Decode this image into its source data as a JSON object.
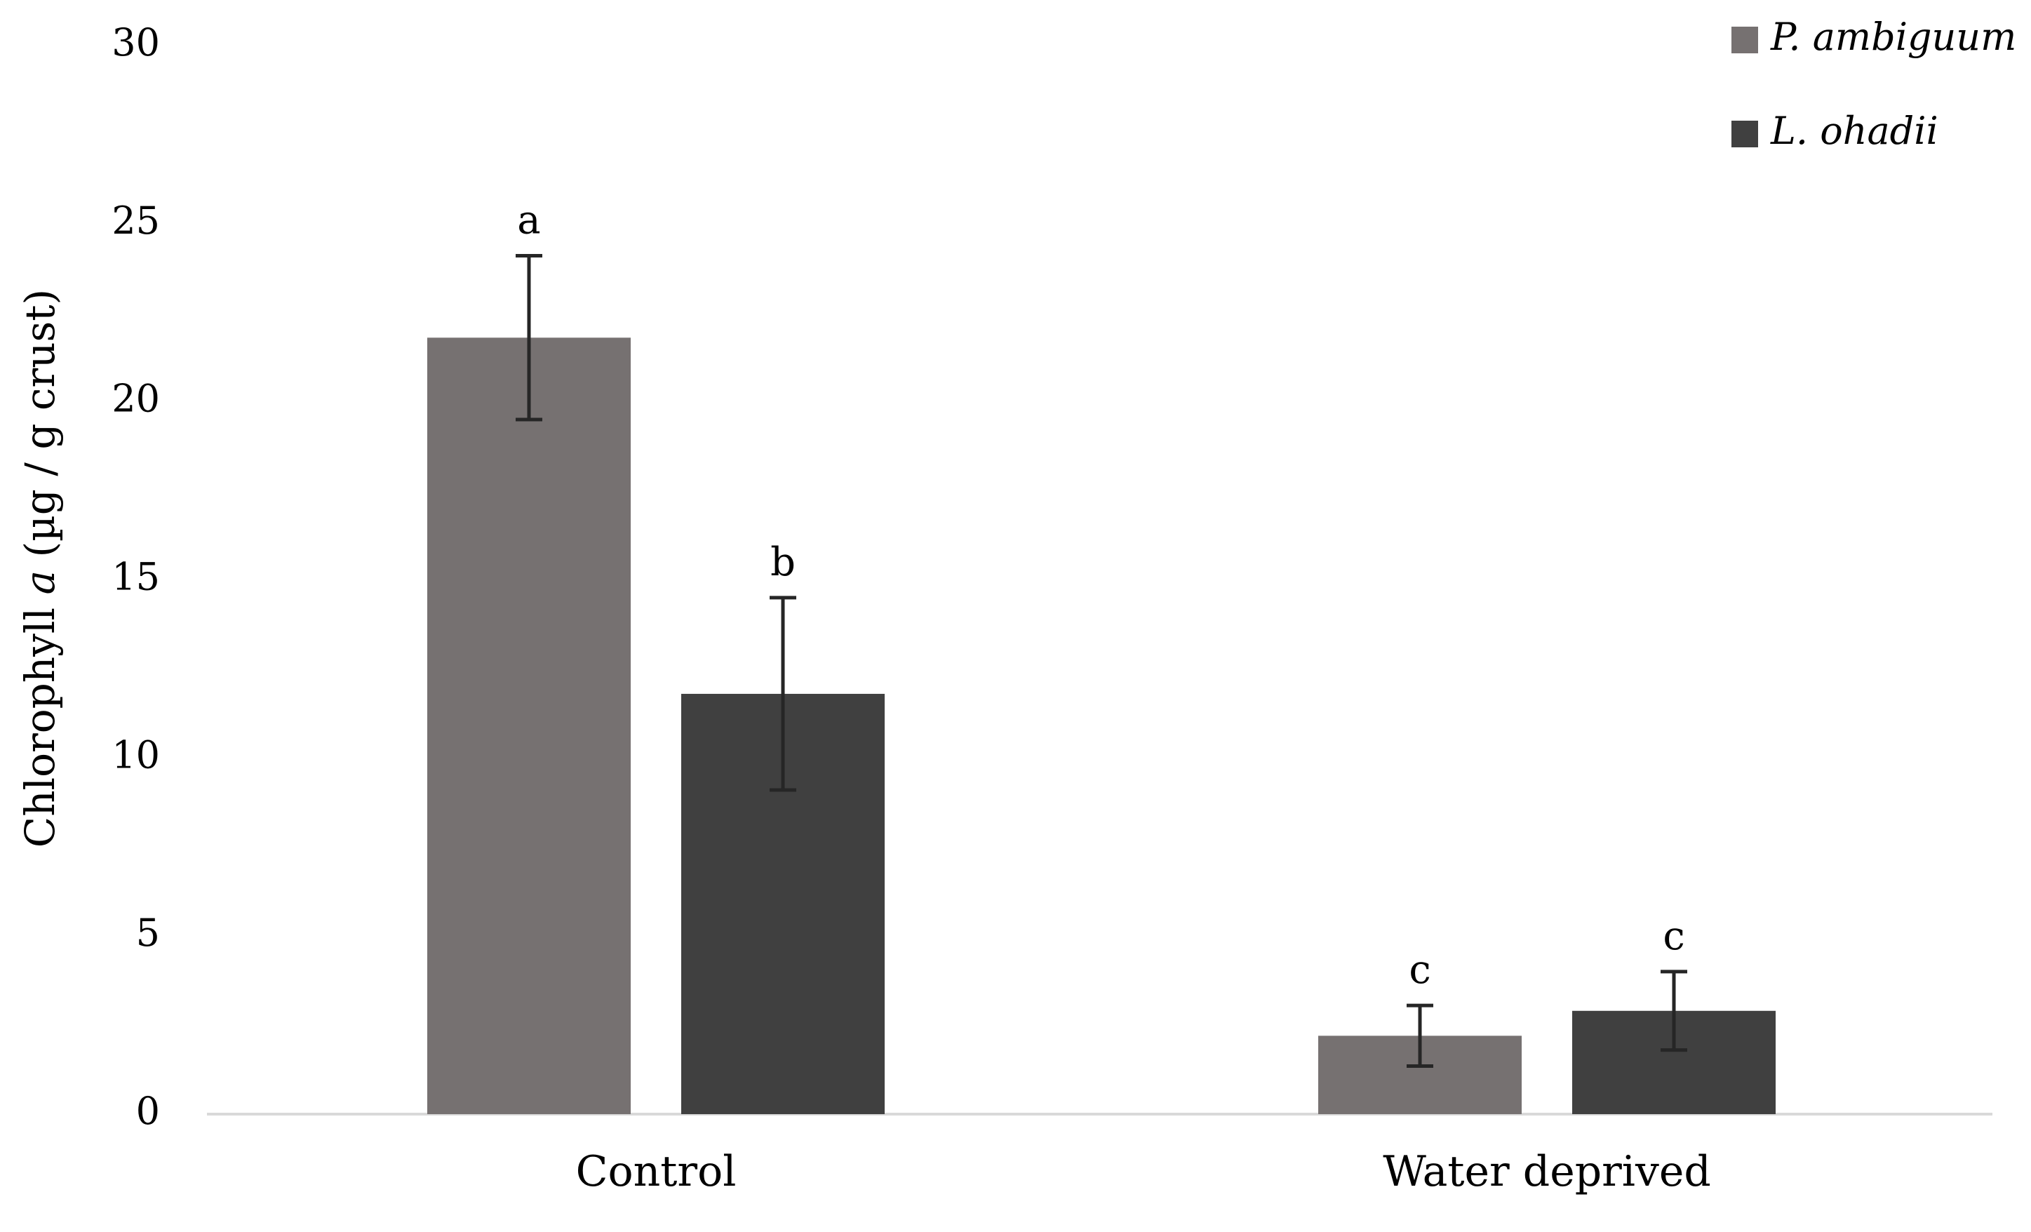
{
  "chart_data": {
    "type": "bar",
    "title": "",
    "xlabel": "",
    "ylabel": {
      "prefix": "Chlorophyll ",
      "italic": "a",
      "suffix": " (µg / g crust)"
    },
    "ylim": [
      0,
      30
    ],
    "yticks": [
      "0",
      "5",
      "10",
      "15",
      "20",
      "25",
      "30"
    ],
    "ytick_values": [
      0,
      5,
      10,
      15,
      20,
      25,
      30
    ],
    "grid": false,
    "legend_position": "top-right",
    "categories": [
      "Control",
      "Water deprived"
    ],
    "series": [
      {
        "name": "P. ambiguum",
        "color": "#767171",
        "values": [
          21.8,
          2.2
        ],
        "errors": [
          2.3,
          0.85
        ],
        "significance": [
          "a",
          "c"
        ]
      },
      {
        "name": "L. ohadii",
        "color": "#404040",
        "values": [
          11.8,
          2.9
        ],
        "errors": [
          2.7,
          1.1
        ],
        "significance": [
          "b",
          "c"
        ]
      }
    ],
    "axis_color": "#d9d9d9",
    "error_bar_color": "#262626"
  }
}
